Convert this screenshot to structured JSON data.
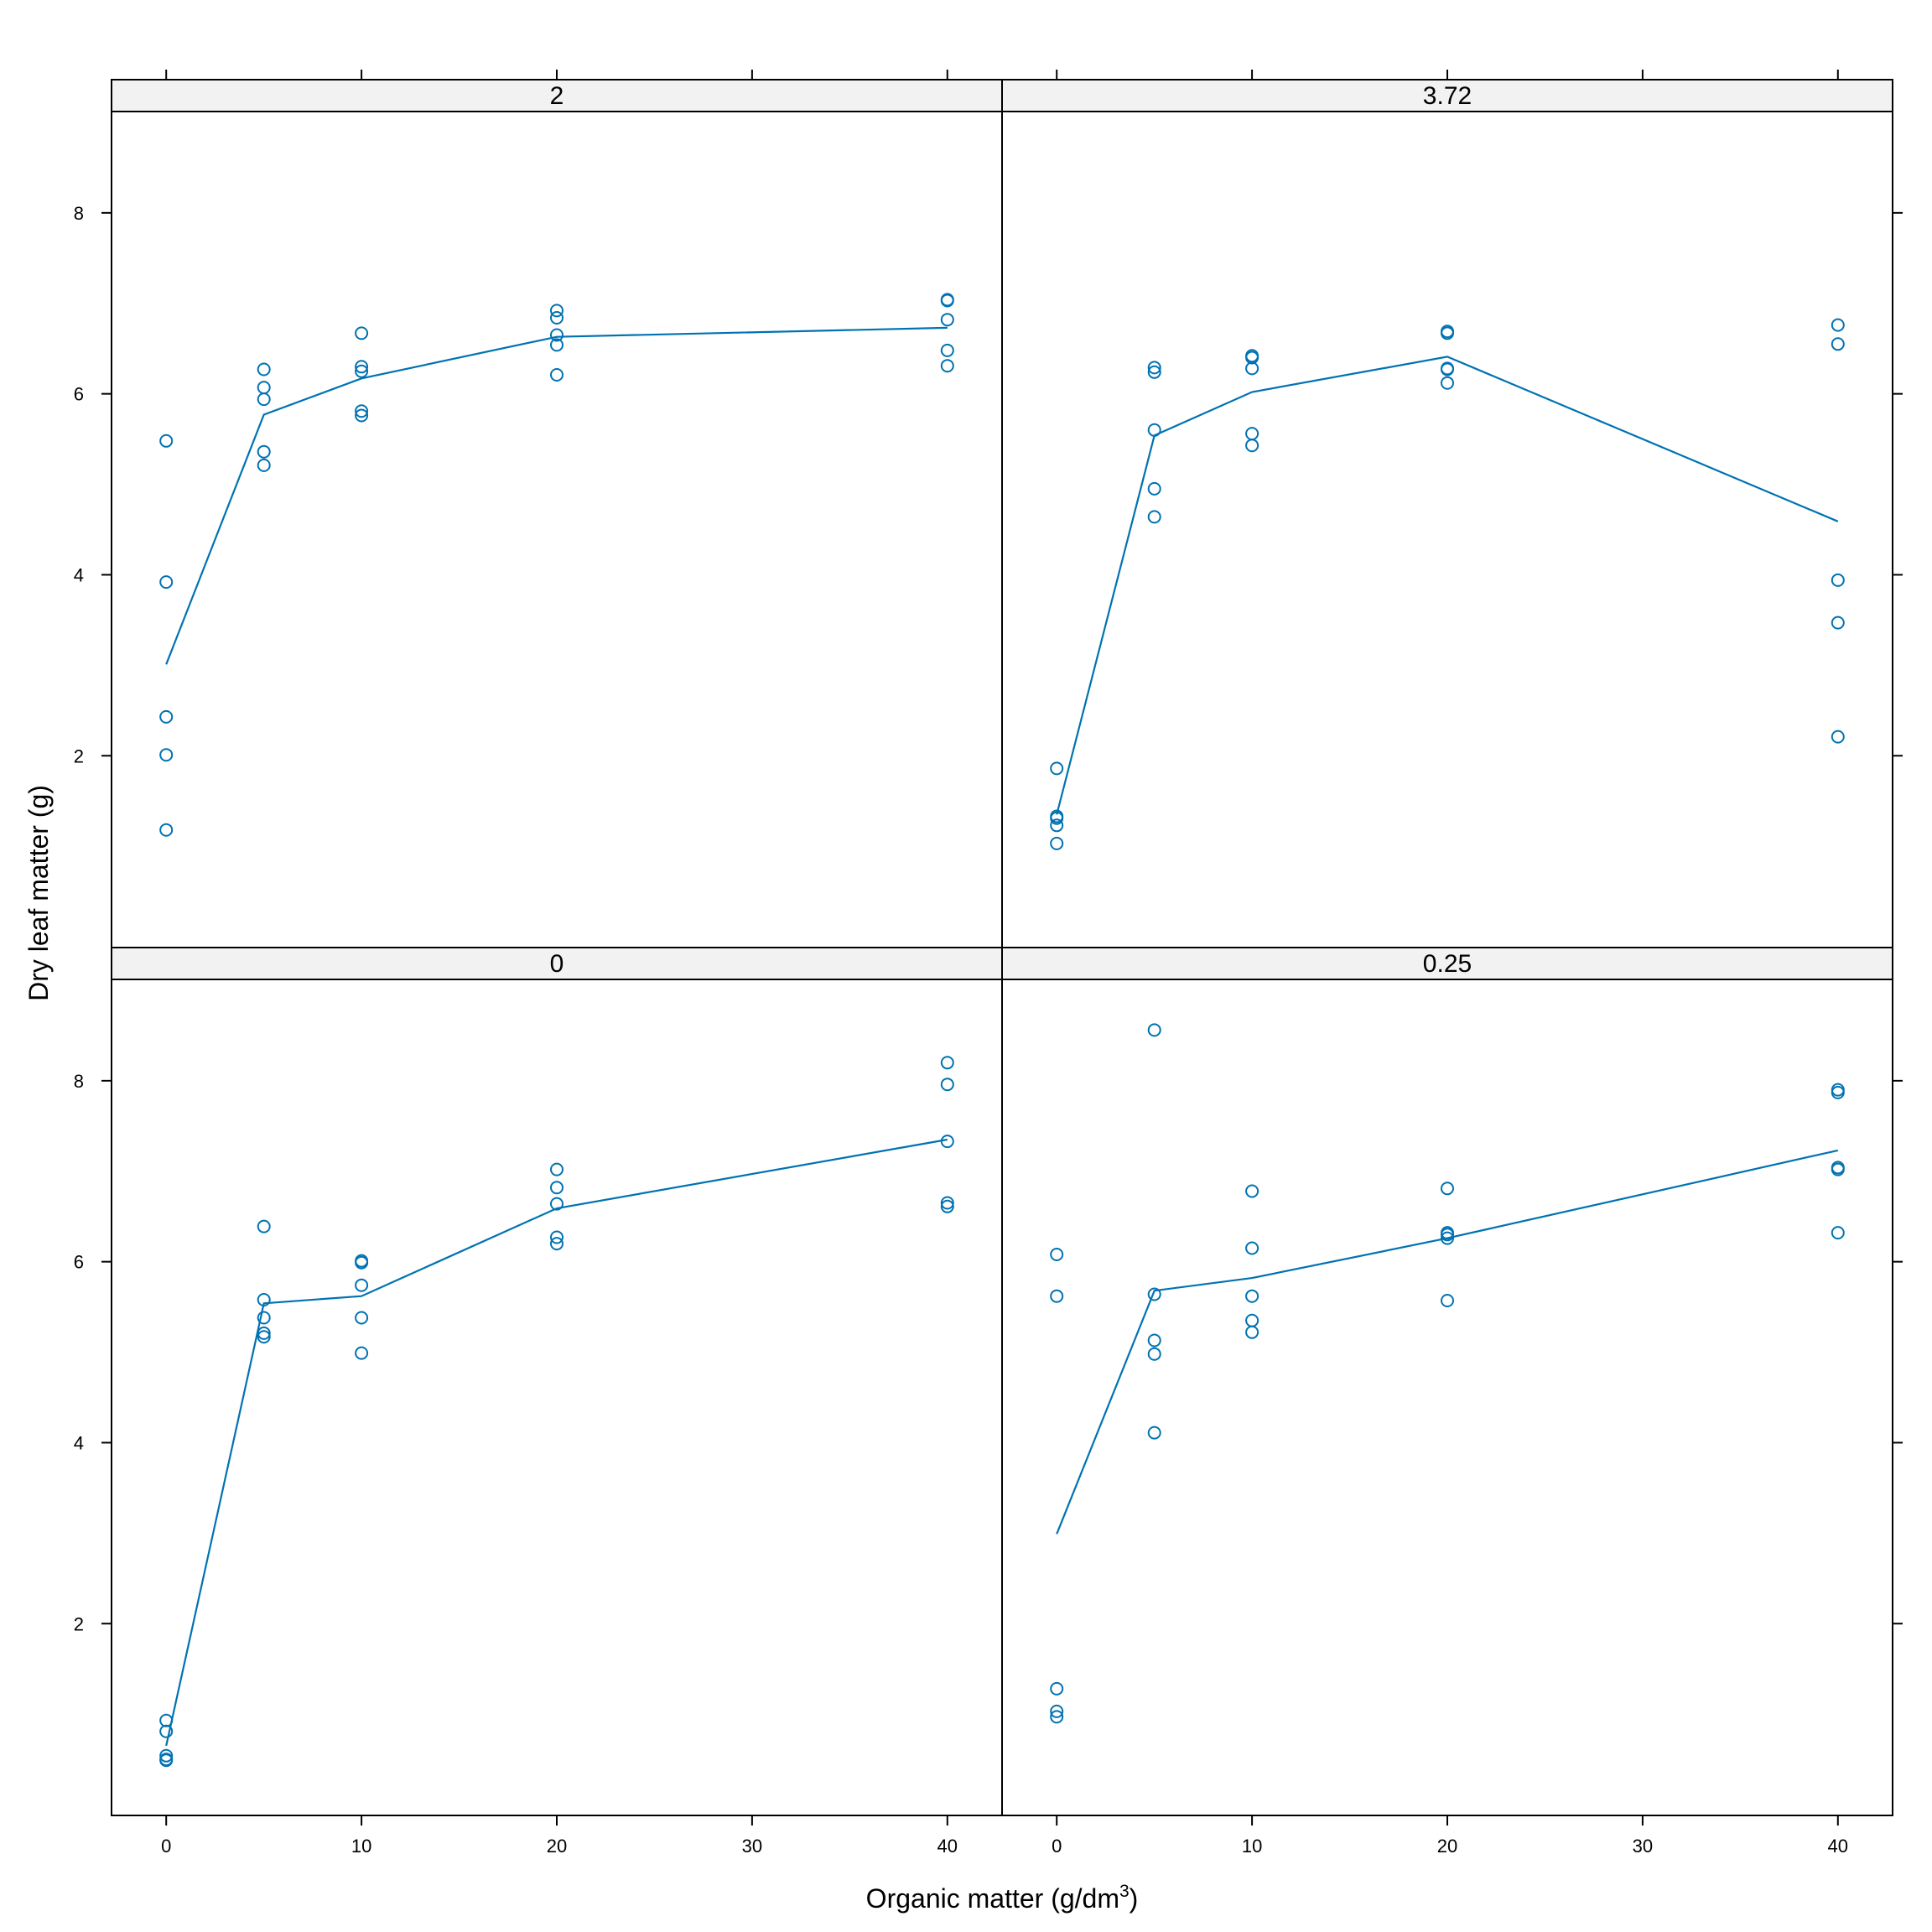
{
  "chart_data": {
    "type": "scatter",
    "xlabel": {
      "text": "Organic matter (g/dm",
      "sup": "3",
      "suffix": ")"
    },
    "ylabel": "Dry leaf matter (g)",
    "xlim": [
      -2.8,
      42.8
    ],
    "ylim": [
      -0.12,
      9.12
    ],
    "x_ticks": [
      0,
      10,
      20,
      30,
      40
    ],
    "y_ticks": [
      2,
      4,
      6,
      8
    ],
    "grid": false,
    "color": "#0072b2",
    "strip_color": "#f2f2f2",
    "panels": [
      {
        "label": "2",
        "points": [
          [
            0,
            5.48
          ],
          [
            0,
            3.92
          ],
          [
            0,
            2.43
          ],
          [
            0,
            2.01
          ],
          [
            0,
            1.18
          ],
          [
            5,
            6.27
          ],
          [
            5,
            6.07
          ],
          [
            5,
            5.94
          ],
          [
            5,
            5.36
          ],
          [
            5,
            5.21
          ],
          [
            10,
            6.67
          ],
          [
            10,
            6.3
          ],
          [
            10,
            6.25
          ],
          [
            10,
            5.81
          ],
          [
            10,
            5.76
          ],
          [
            20,
            6.92
          ],
          [
            20,
            6.84
          ],
          [
            20,
            6.65
          ],
          [
            20,
            6.54
          ],
          [
            20,
            6.21
          ],
          [
            40,
            7.04
          ],
          [
            40,
            7.03
          ],
          [
            40,
            6.82
          ],
          [
            40,
            6.48
          ],
          [
            40,
            6.31
          ]
        ],
        "line": [
          [
            0,
            3.01
          ],
          [
            5,
            5.77
          ],
          [
            10,
            6.17
          ],
          [
            20,
            6.63
          ],
          [
            40,
            6.73
          ]
        ]
      },
      {
        "label": "3.72",
        "points": [
          [
            0,
            1.86
          ],
          [
            0,
            1.33
          ],
          [
            0,
            1.31
          ],
          [
            0,
            1.23
          ],
          [
            0,
            1.03
          ],
          [
            5,
            6.29
          ],
          [
            5,
            6.24
          ],
          [
            5,
            5.6
          ],
          [
            5,
            4.95
          ],
          [
            5,
            4.64
          ],
          [
            10,
            6.42
          ],
          [
            10,
            6.4
          ],
          [
            10,
            6.28
          ],
          [
            10,
            5.56
          ],
          [
            10,
            5.43
          ],
          [
            20,
            6.69
          ],
          [
            20,
            6.67
          ],
          [
            20,
            6.28
          ],
          [
            20,
            6.27
          ],
          [
            20,
            6.12
          ],
          [
            40,
            6.76
          ],
          [
            40,
            6.55
          ],
          [
            40,
            3.94
          ],
          [
            40,
            3.47
          ],
          [
            40,
            2.21
          ]
        ],
        "line": [
          [
            0,
            1.35
          ],
          [
            5,
            5.54
          ],
          [
            10,
            6.02
          ],
          [
            20,
            6.41
          ],
          [
            40,
            4.59
          ]
        ]
      },
      {
        "label": "0",
        "points": [
          [
            0,
            0.93
          ],
          [
            0,
            0.81
          ],
          [
            0,
            0.54
          ],
          [
            0,
            0.5
          ],
          [
            0,
            0.49
          ],
          [
            5,
            6.39
          ],
          [
            5,
            5.58
          ],
          [
            5,
            5.38
          ],
          [
            5,
            5.21
          ],
          [
            5,
            5.17
          ],
          [
            10,
            6.01
          ],
          [
            10,
            5.99
          ],
          [
            10,
            5.74
          ],
          [
            10,
            5.38
          ],
          [
            10,
            4.99
          ],
          [
            20,
            7.02
          ],
          [
            20,
            6.82
          ],
          [
            20,
            6.64
          ],
          [
            20,
            6.27
          ],
          [
            20,
            6.2
          ],
          [
            40,
            8.2
          ],
          [
            40,
            7.96
          ],
          [
            40,
            7.33
          ],
          [
            40,
            6.65
          ],
          [
            40,
            6.61
          ]
        ],
        "line": [
          [
            0,
            0.65
          ],
          [
            5,
            5.54
          ],
          [
            10,
            5.62
          ],
          [
            20,
            6.59
          ],
          [
            40,
            7.35
          ]
        ]
      },
      {
        "label": "0.25",
        "points": [
          [
            0,
            6.08
          ],
          [
            0,
            5.62
          ],
          [
            0,
            1.28
          ],
          [
            0,
            1.03
          ],
          [
            0,
            0.97
          ],
          [
            5,
            8.56
          ],
          [
            5,
            5.64
          ],
          [
            5,
            5.13
          ],
          [
            5,
            4.98
          ],
          [
            5,
            4.11
          ],
          [
            10,
            6.78
          ],
          [
            10,
            6.15
          ],
          [
            10,
            5.62
          ],
          [
            10,
            5.35
          ],
          [
            10,
            5.22
          ],
          [
            20,
            6.81
          ],
          [
            20,
            6.32
          ],
          [
            20,
            6.3
          ],
          [
            20,
            6.26
          ],
          [
            20,
            5.57
          ],
          [
            40,
            7.9
          ],
          [
            40,
            7.87
          ],
          [
            40,
            7.04
          ],
          [
            40,
            7.02
          ],
          [
            40,
            6.32
          ]
        ],
        "line": [
          [
            0,
            2.99
          ],
          [
            5,
            5.68
          ],
          [
            10,
            5.82
          ],
          [
            20,
            6.26
          ],
          [
            40,
            7.23
          ]
        ]
      }
    ]
  }
}
